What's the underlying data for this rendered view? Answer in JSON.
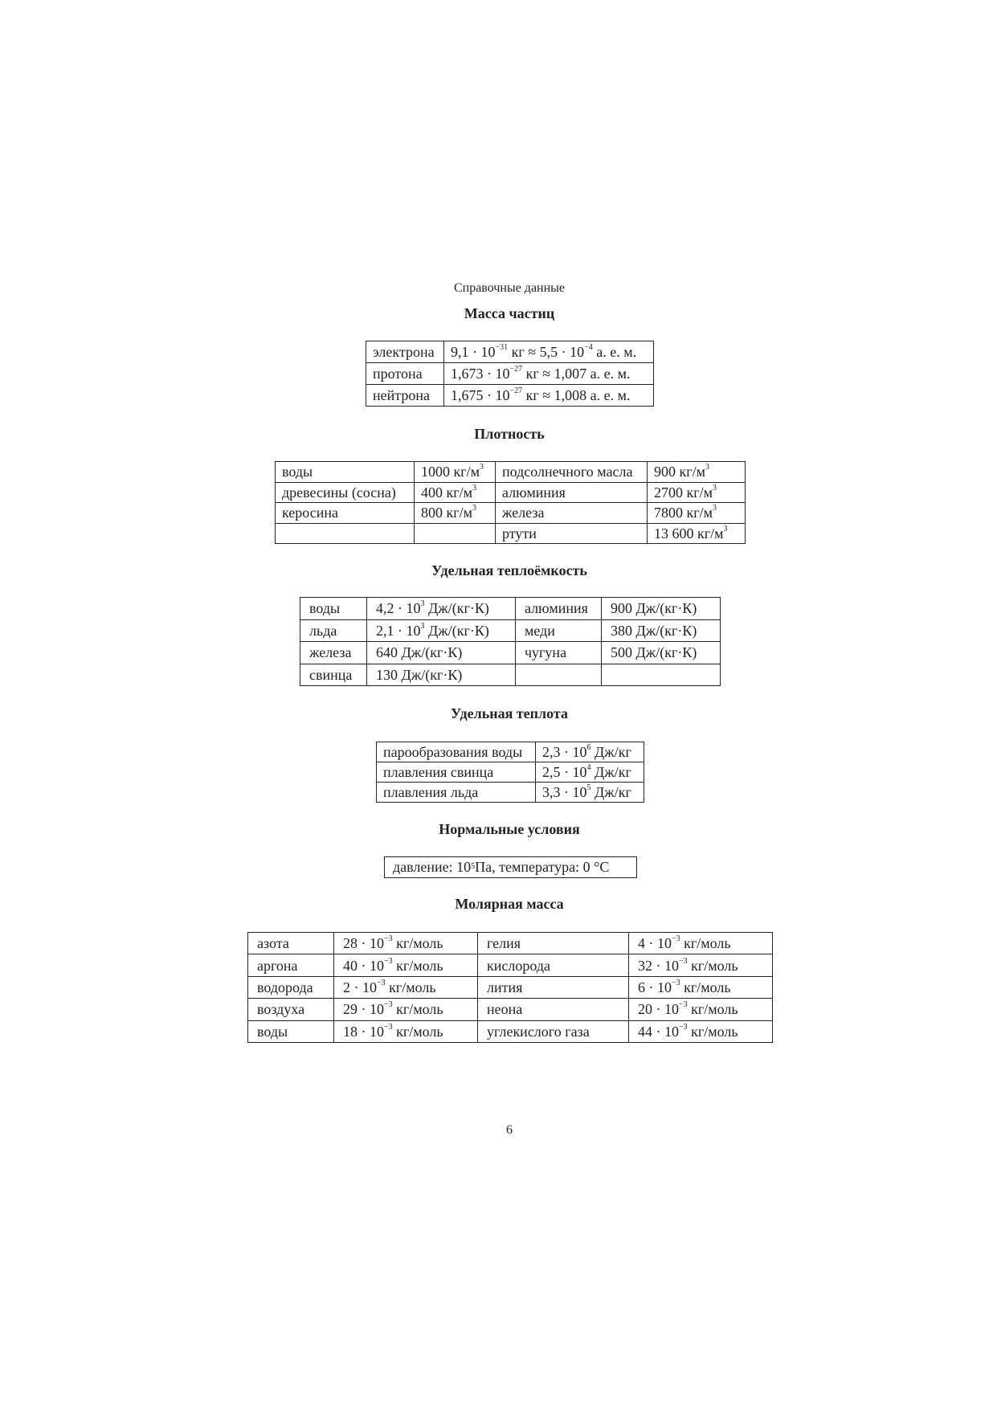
{
  "page": {
    "caption": "Справочные данные",
    "page_number": "6"
  },
  "sections": {
    "mass": {
      "title": "Масса частиц",
      "rows": [
        [
          [
            "электрона"
          ],
          [
            "9,1 · 10",
            {
              "sup": "−31"
            },
            " кг ≈ 5,5 · 10",
            {
              "sup": "−4"
            },
            " а. е. м."
          ]
        ],
        [
          [
            "протона"
          ],
          [
            "1,673 · 10",
            {
              "sup": "−27"
            },
            " кг ≈ 1,007 а. е. м."
          ]
        ],
        [
          [
            "нейтрона"
          ],
          [
            "1,675 · 10",
            {
              "sup": "−27"
            },
            " кг ≈ 1,008 а. е. м."
          ]
        ]
      ]
    },
    "density": {
      "title": "Плотность",
      "rows": [
        [
          [
            "воды"
          ],
          [
            "1000 кг/м",
            {
              "sup": "3"
            }
          ],
          [
            "подсолнечного масла"
          ],
          [
            "900 кг/м",
            {
              "sup": "3"
            }
          ]
        ],
        [
          [
            "древесины (сосна)"
          ],
          [
            "400 кг/м",
            {
              "sup": "3"
            }
          ],
          [
            "алюминия"
          ],
          [
            "2700 кг/м",
            {
              "sup": "3"
            }
          ]
        ],
        [
          [
            "керосина"
          ],
          [
            "800 кг/м",
            {
              "sup": "3"
            }
          ],
          [
            "железа"
          ],
          [
            "7800 кг/м",
            {
              "sup": "3"
            }
          ]
        ],
        [
          [
            ""
          ],
          [
            ""
          ],
          [
            "ртути"
          ],
          [
            "13 600 кг/м",
            {
              "sup": "3"
            }
          ]
        ]
      ]
    },
    "heat_capacity": {
      "title": "Удельная теплоёмкость",
      "rows": [
        [
          [
            "воды"
          ],
          [
            "4,2 · 10",
            {
              "sup": "3"
            },
            " Дж/(кг·К)"
          ],
          [
            "алюминия"
          ],
          [
            "900 Дж/(кг·К)"
          ]
        ],
        [
          [
            "льда"
          ],
          [
            "2,1 · 10",
            {
              "sup": "3"
            },
            " Дж/(кг·К)"
          ],
          [
            "меди"
          ],
          [
            "380 Дж/(кг·К)"
          ]
        ],
        [
          [
            "железа"
          ],
          [
            "640 Дж/(кг·К)"
          ],
          [
            "чугуна"
          ],
          [
            "500 Дж/(кг·К)"
          ]
        ],
        [
          [
            "свинца"
          ],
          [
            "130 Дж/(кг·К)"
          ],
          [
            ""
          ],
          [
            ""
          ]
        ]
      ]
    },
    "latent_heat": {
      "title": "Удельная теплота",
      "rows": [
        [
          [
            "парообразования воды"
          ],
          [
            "2,3 · 10",
            {
              "sup": "6"
            },
            " Дж/кг"
          ]
        ],
        [
          [
            "плавления свинца"
          ],
          [
            "2,5 · 10",
            {
              "sup": "4"
            },
            " Дж/кг"
          ]
        ],
        [
          [
            "плавления льда"
          ],
          [
            "3,3 · 10",
            {
              "sup": "5"
            },
            " Дж/кг"
          ]
        ]
      ]
    },
    "normal_conditions": {
      "title": "Нормальные условия",
      "content": [
        "давление: 10",
        {
          "sup": "5"
        },
        " Па,  температура: 0 °С"
      ]
    },
    "molar_mass": {
      "title": "Молярная масса",
      "rows": [
        [
          [
            "азота"
          ],
          [
            "28 · 10",
            {
              "sup": "−3"
            },
            " кг/моль"
          ],
          [
            "гелия"
          ],
          [
            "4 · 10",
            {
              "sup": "−3"
            },
            " кг/моль"
          ]
        ],
        [
          [
            "аргона"
          ],
          [
            "40 · 10",
            {
              "sup": "−3"
            },
            " кг/моль"
          ],
          [
            "кислорода"
          ],
          [
            "32 · 10",
            {
              "sup": "−3"
            },
            " кг/моль"
          ]
        ],
        [
          [
            "водорода"
          ],
          [
            "2 · 10",
            {
              "sup": "−3"
            },
            " кг/моль"
          ],
          [
            "лития"
          ],
          [
            "6 · 10",
            {
              "sup": "−3"
            },
            " кг/моль"
          ]
        ],
        [
          [
            "воздуха"
          ],
          [
            "29 · 10",
            {
              "sup": "−3"
            },
            " кг/моль"
          ],
          [
            "неона"
          ],
          [
            "20 · 10",
            {
              "sup": "−3"
            },
            " кг/моль"
          ]
        ],
        [
          [
            "воды"
          ],
          [
            "18 · 10",
            {
              "sup": "−3"
            },
            " кг/моль"
          ],
          [
            "углекислого газа"
          ],
          [
            "44 · 10",
            {
              "sup": "−3"
            },
            " кг/моль"
          ]
        ]
      ]
    }
  }
}
